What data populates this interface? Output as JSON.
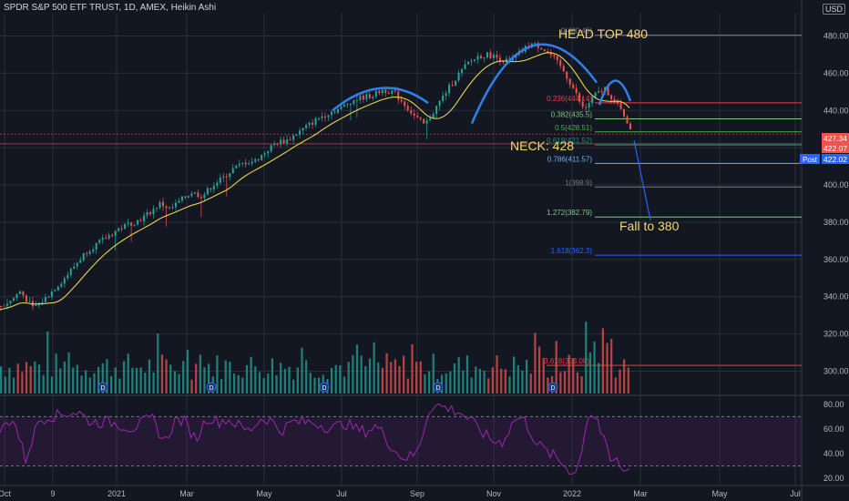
{
  "header": {
    "title": "SPDR S&P 500 ETF TRUST, 1D, AMEX, Heikin Ashi",
    "currency": "USD"
  },
  "colors": {
    "background": "#131722",
    "bull": "#26a69a",
    "bear": "#ef5350",
    "ma": "#e8d44d",
    "arc": "#2f80ed",
    "annotation": "#f5d76e",
    "rsi": "#9c27b0",
    "grid": "#2a2e39"
  },
  "chart_data": {
    "type": "candlestick",
    "title": "SPDR S&P 500 ETF TRUST, 1D, AMEX, Heikin Ashi",
    "ylim": [
      288,
      492
    ],
    "y_ticks": [
      "480.00",
      "460.00",
      "440.00",
      "420.00",
      "400.00",
      "380.00",
      "360.00",
      "340.00",
      "320.00",
      "300.00"
    ],
    "x_ticks": [
      "Oct",
      "9",
      "2021",
      "Mar",
      "May",
      "Jul",
      "Sep",
      "Nov",
      "2022",
      "Mar",
      "May",
      "Jul"
    ],
    "price_tags": [
      {
        "label": "427.34",
        "price": 427.34,
        "color": "#ef5350"
      },
      {
        "label": "422.07",
        "price": 422.07,
        "color": "#ef5350"
      },
      {
        "label": "422.02",
        "price": 422.02,
        "color": "#2962ff",
        "prefix": "Post"
      }
    ],
    "fib_levels": [
      {
        "label": "0(480.45)",
        "price": 480.45,
        "color": "#787b86"
      },
      {
        "label": "0.236(444.14)",
        "price": 444.14,
        "color": "#f23645"
      },
      {
        "label": "0.382(435.5)",
        "price": 435.5,
        "color": "#81c784"
      },
      {
        "label": "0.5(428.51)",
        "price": 428.51,
        "color": "#4caf50"
      },
      {
        "label": "0.618(421.52)",
        "price": 421.52,
        "color": "#089981"
      },
      {
        "label": "0.786(411.57)",
        "price": 411.57,
        "color": "#64b5f6"
      },
      {
        "label": "1(398.9)",
        "price": 398.9,
        "color": "#787b86"
      },
      {
        "label": "1.272(382.79)",
        "price": 382.79,
        "color": "#81c784"
      },
      {
        "label": "1.618(362.3)",
        "price": 362.3,
        "color": "#2962ff"
      },
      {
        "label": "3.618(303.08)",
        "price": 303.08,
        "color": "#f23645"
      }
    ],
    "annotations": [
      {
        "text": "HEAD TOP 480",
        "price": 480
      },
      {
        "text": "NECK: 428",
        "price": 428
      },
      {
        "text": "Fall to 380",
        "price": 380
      }
    ],
    "series": [
      {
        "name": "",
        "type": "heikin_ashi_close",
        "x_index_range": [
          0,
          335
        ],
        "points": [
          [
            0,
            335
          ],
          [
            10,
            338
          ],
          [
            18,
            343
          ],
          [
            22,
            340
          ],
          [
            30,
            334
          ],
          [
            40,
            338
          ],
          [
            50,
            344
          ],
          [
            60,
            350
          ],
          [
            70,
            357
          ],
          [
            80,
            364
          ],
          [
            90,
            368
          ],
          [
            100,
            372
          ],
          [
            110,
            376
          ],
          [
            120,
            379
          ],
          [
            130,
            381
          ],
          [
            140,
            385
          ],
          [
            150,
            390
          ],
          [
            160,
            387
          ],
          [
            170,
            392
          ],
          [
            180,
            396
          ],
          [
            190,
            394
          ],
          [
            200,
            400
          ],
          [
            210,
            404
          ],
          [
            220,
            409
          ],
          [
            230,
            412
          ],
          [
            240,
            413
          ],
          [
            250,
            418
          ],
          [
            260,
            423
          ],
          [
            270,
            424
          ],
          [
            280,
            428
          ],
          [
            290,
            432
          ],
          [
            300,
            436
          ],
          [
            310,
            439
          ],
          [
            320,
            441
          ],
          [
            330,
            445
          ],
          [
            340,
            447
          ],
          [
            350,
            448
          ],
          [
            360,
            451
          ],
          [
            370,
            450
          ],
          [
            380,
            444
          ],
          [
            390,
            437
          ],
          [
            400,
            432
          ],
          [
            410,
            441
          ],
          [
            420,
            450
          ],
          [
            430,
            458
          ],
          [
            440,
            465
          ],
          [
            450,
            469
          ],
          [
            460,
            470
          ],
          [
            470,
            468
          ],
          [
            480,
            466
          ],
          [
            490,
            471
          ],
          [
            500,
            476
          ],
          [
            510,
            474
          ],
          [
            520,
            469
          ],
          [
            530,
            462
          ],
          [
            540,
            452
          ],
          [
            550,
            440
          ],
          [
            560,
            448
          ],
          [
            570,
            452
          ],
          [
            580,
            444
          ],
          [
            590,
            436
          ],
          [
            595,
            427
          ]
        ]
      }
    ],
    "volume_panel": {
      "label": "Volume",
      "line_label": "3.618(303.08)"
    },
    "rsi_panel": {
      "ylim": [
        20,
        80
      ],
      "y_ticks": [
        "80.00",
        "60.00",
        "40.00",
        "20.00"
      ],
      "bands": [
        70,
        30
      ]
    }
  }
}
